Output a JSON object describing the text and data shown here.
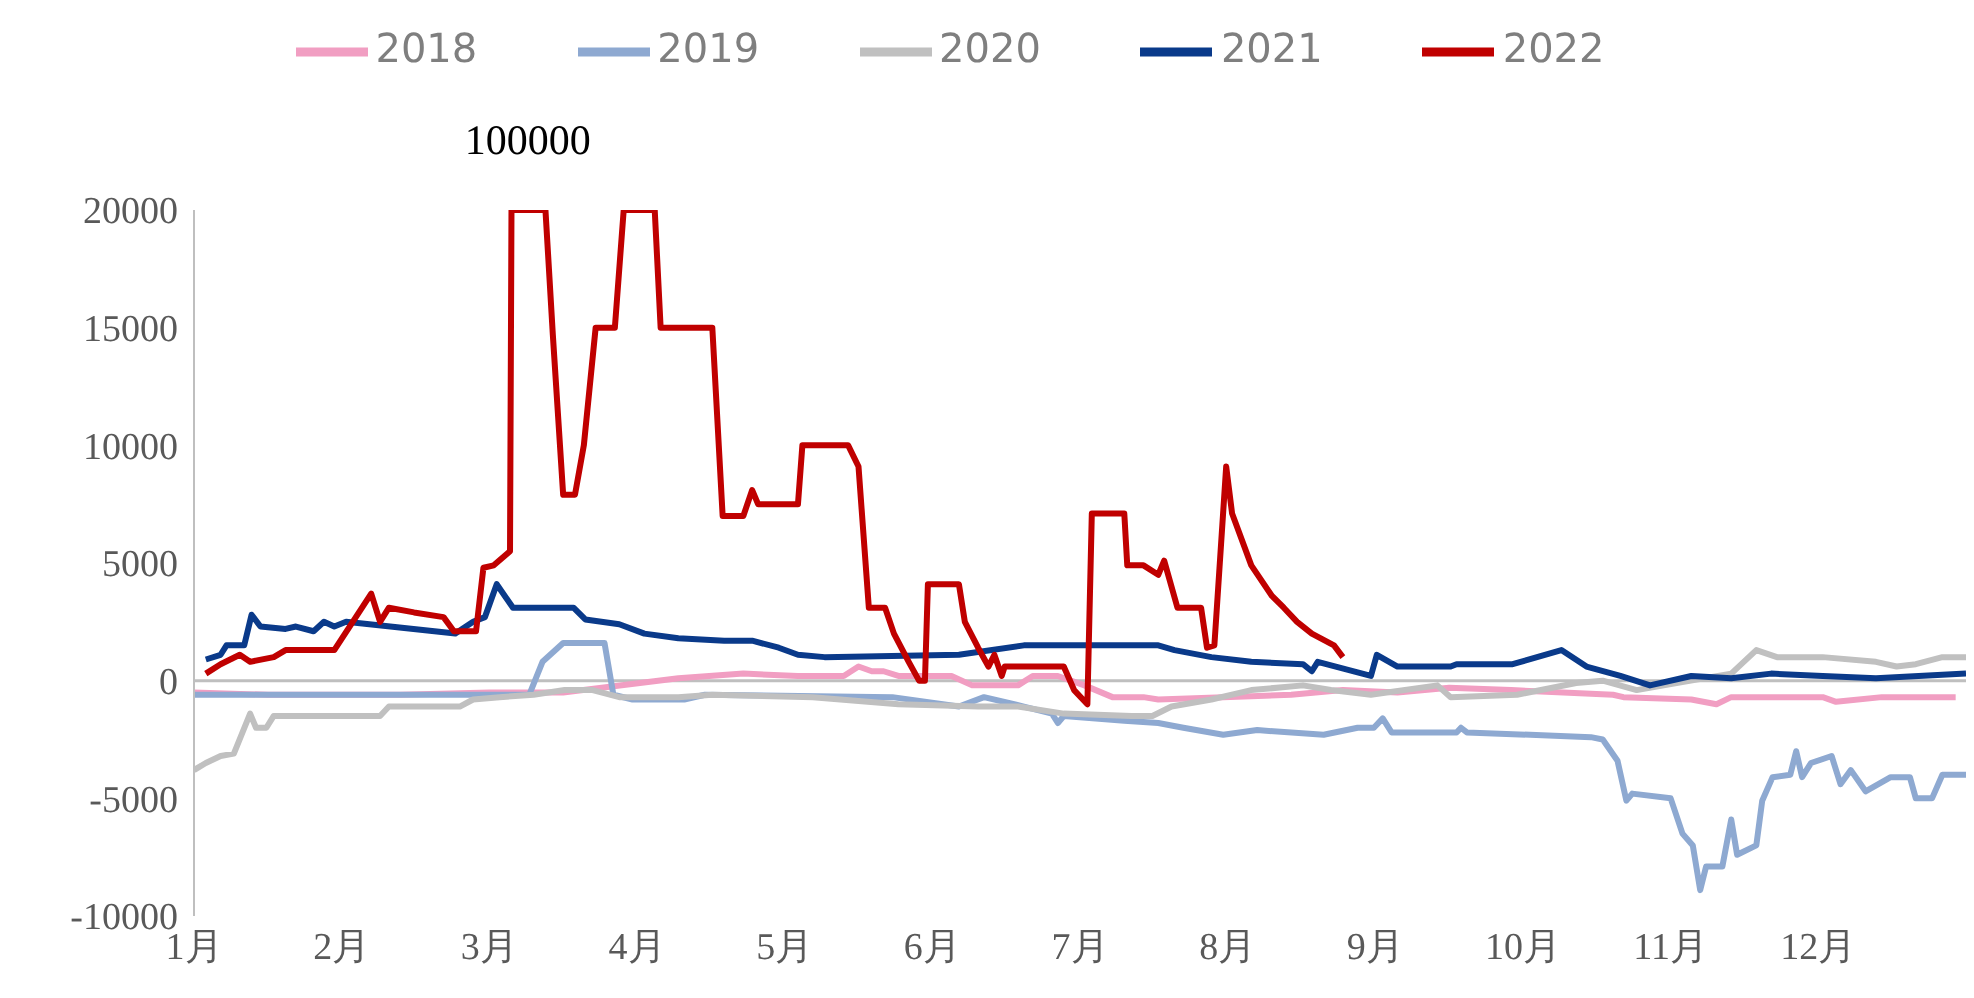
{
  "chart_data": {
    "type": "line",
    "legend": "top",
    "marker": "none",
    "line_style": "solid",
    "grid": false,
    "xlim": [
      1,
      13
    ],
    "xticks": [
      {
        "value": 1,
        "label": "1月"
      },
      {
        "value": 2,
        "label": "2月"
      },
      {
        "value": 3,
        "label": "3月"
      },
      {
        "value": 4,
        "label": "4月"
      },
      {
        "value": 5,
        "label": "5月"
      },
      {
        "value": 6,
        "label": "6月"
      },
      {
        "value": 7,
        "label": "7月"
      },
      {
        "value": 8,
        "label": "8月"
      },
      {
        "value": 9,
        "label": "9月"
      },
      {
        "value": 10,
        "label": "10月"
      },
      {
        "value": 11,
        "label": "11月"
      },
      {
        "value": 12,
        "label": "12月"
      }
    ],
    "ylim": [
      -10000,
      20000
    ],
    "yticks": [
      -10000,
      -5000,
      0,
      5000,
      10000,
      15000,
      20000
    ],
    "annotations": [
      {
        "text": "100000",
        "x": 3.26,
        "y": 20000
      }
    ],
    "ref_lines": [
      {
        "axis": "y",
        "value": 0,
        "color": "#bfbfbf",
        "line_style": "solid"
      }
    ],
    "series": [
      {
        "name": "2018",
        "color": "#f19ec2",
        "x": [
          1.0,
          1.5,
          2.4,
          3.0,
          3.5,
          4.28,
          4.72,
          5.09,
          5.4,
          5.5,
          5.59,
          5.67,
          5.77,
          6.13,
          6.27,
          6.58,
          6.68,
          6.85,
          7.03,
          7.22,
          7.43,
          7.53,
          7.97,
          8.43,
          8.78,
          9.15,
          9.5,
          9.92,
          10.61,
          10.68,
          11.14,
          11.31,
          11.41,
          12.03,
          12.12,
          12.43,
          12.93
        ],
        "values": [
          -500,
          -600,
          -600,
          -500,
          -500,
          100,
          300,
          200,
          200,
          600,
          400,
          400,
          200,
          200,
          -200,
          -200,
          200,
          200,
          -200,
          -700,
          -700,
          -800,
          -700,
          -600,
          -400,
          -500,
          -300,
          -400,
          -600,
          -700,
          -800,
          -1000,
          -700,
          -700,
          -900,
          -700,
          -700
        ]
      },
      {
        "name": "2019",
        "color": "#8ea9d1",
        "x": [
          1.0,
          3.27,
          3.36,
          3.5,
          3.78,
          3.84,
          3.97,
          4.32,
          4.46,
          5.73,
          6.18,
          6.35,
          6.62,
          6.81,
          6.85,
          6.89,
          7.3,
          7.53,
          7.7,
          7.97,
          8.2,
          8.65,
          8.88,
          8.99,
          9.05,
          9.11,
          9.55,
          9.58,
          9.62,
          10.46,
          10.54,
          10.64,
          10.7,
          10.74,
          11.0,
          11.08,
          11.15,
          11.2,
          11.24,
          11.35,
          11.41,
          11.45,
          11.58,
          11.62,
          11.69,
          11.81,
          11.85,
          11.89,
          11.95,
          12.09,
          12.15,
          12.22,
          12.32,
          12.49,
          12.62,
          12.66,
          12.77,
          12.84,
          13.0
        ],
        "values": [
          -600,
          -600,
          800,
          1600,
          1600,
          -600,
          -800,
          -800,
          -600,
          -700,
          -1100,
          -700,
          -1100,
          -1400,
          -1800,
          -1500,
          -1700,
          -1800,
          -2000,
          -2300,
          -2100,
          -2300,
          -2000,
          -2000,
          -1600,
          -2200,
          -2200,
          -2000,
          -2200,
          -2400,
          -2500,
          -3400,
          -5100,
          -4800,
          -5000,
          -6500,
          -7000,
          -8900,
          -7900,
          -7900,
          -5900,
          -7400,
          -7000,
          -5100,
          -4100,
          -4000,
          -3000,
          -4100,
          -3500,
          -3200,
          -4400,
          -3800,
          -4700,
          -4100,
          -4100,
          -5000,
          -5000,
          -4000,
          -4000
        ]
      },
      {
        "name": "2020",
        "color": "#c0c0c0",
        "x": [
          1.0,
          1.08,
          1.18,
          1.27,
          1.38,
          1.42,
          1.49,
          1.54,
          2.26,
          2.32,
          2.8,
          2.89,
          3.07,
          3.3,
          3.51,
          3.7,
          3.88,
          4.28,
          4.51,
          5.19,
          5.77,
          6.31,
          6.58,
          6.89,
          7.35,
          7.49,
          7.62,
          7.89,
          8.16,
          8.51,
          8.7,
          8.97,
          9.42,
          9.51,
          9.96,
          10.36,
          10.54,
          10.77,
          11.04,
          11.41,
          11.58,
          11.72,
          12.03,
          12.39,
          12.53,
          12.66,
          12.84,
          13.0
        ],
        "values": [
          -3800,
          -3500,
          -3200,
          -3100,
          -1400,
          -2000,
          -2000,
          -1500,
          -1500,
          -1100,
          -1100,
          -800,
          -700,
          -600,
          -400,
          -400,
          -700,
          -700,
          -600,
          -700,
          -1000,
          -1100,
          -1100,
          -1400,
          -1500,
          -1500,
          -1100,
          -800,
          -400,
          -200,
          -400,
          -600,
          -200,
          -700,
          -600,
          -100,
          0,
          -400,
          -100,
          300,
          1300,
          1000,
          1000,
          800,
          600,
          700,
          1000,
          1000
        ]
      },
      {
        "name": "2021",
        "color": "#0a3a8a",
        "x": [
          1.08,
          1.18,
          1.22,
          1.34,
          1.39,
          1.45,
          1.62,
          1.69,
          1.81,
          1.88,
          1.95,
          2.03,
          2.77,
          2.89,
          2.97,
          3.05,
          3.16,
          3.57,
          3.65,
          3.88,
          4.05,
          4.28,
          4.59,
          4.78,
          4.96,
          5.09,
          5.27,
          6.18,
          6.62,
          7.53,
          7.64,
          7.89,
          8.16,
          8.51,
          8.57,
          8.61,
          8.97,
          9.01,
          9.15,
          9.51,
          9.55,
          9.93,
          10.26,
          10.43,
          10.66,
          10.86,
          11.14,
          11.41,
          11.68,
          12.03,
          12.39,
          13.0
        ],
        "values": [
          900,
          1100,
          1500,
          1500,
          2800,
          2300,
          2200,
          2300,
          2100,
          2500,
          2300,
          2500,
          2000,
          2500,
          2700,
          4100,
          3100,
          3100,
          2600,
          2400,
          2000,
          1800,
          1700,
          1700,
          1400,
          1100,
          1000,
          1100,
          1500,
          1500,
          1300,
          1000,
          800,
          700,
          400,
          800,
          200,
          1100,
          600,
          600,
          700,
          700,
          1300,
          600,
          200,
          -200,
          200,
          100,
          300,
          200,
          100,
          300
        ]
      },
      {
        "name": "2022",
        "color": "#c00000",
        "x": [
          1.08,
          1.18,
          1.31,
          1.38,
          1.54,
          1.62,
          1.95,
          2.2,
          2.26,
          2.32,
          2.49,
          2.69,
          2.76,
          2.91,
          2.96,
          3.03,
          3.14,
          3.15,
          3.38,
          3.43,
          3.5,
          3.58,
          3.64,
          3.72,
          3.85,
          3.91,
          4.12,
          4.16,
          4.51,
          4.58,
          4.72,
          4.78,
          4.82,
          5.09,
          5.12,
          5.43,
          5.5,
          5.57,
          5.68,
          5.74,
          5.84,
          5.91,
          5.95,
          5.97,
          6.18,
          6.22,
          6.31,
          6.38,
          6.42,
          6.47,
          6.49,
          6.89,
          6.96,
          7.05,
          7.08,
          7.3,
          7.32,
          7.43,
          7.53,
          7.57,
          7.66,
          7.82,
          7.86,
          7.91,
          7.99,
          8.03,
          8.16,
          8.3,
          8.38,
          8.47,
          8.57,
          8.72,
          8.78
        ],
        "values": [
          300,
          700,
          1100,
          800,
          1000,
          1300,
          1300,
          3700,
          2500,
          3100,
          2900,
          2700,
          2100,
          2100,
          4800,
          4900,
          5500,
          20000,
          20000,
          14700,
          7900,
          7900,
          10000,
          15000,
          15000,
          20000,
          20000,
          15000,
          15000,
          7000,
          7000,
          8100,
          7500,
          7500,
          10000,
          10000,
          9100,
          3100,
          3100,
          2000,
          800,
          0,
          0,
          4100,
          4100,
          2500,
          1400,
          600,
          1100,
          200,
          600,
          600,
          -400,
          -1000,
          7100,
          7100,
          4900,
          4900,
          4500,
          5100,
          3100,
          3100,
          1400,
          1500,
          9100,
          7100,
          4900,
          3600,
          3100,
          2500,
          2000,
          1500,
          1000
        ]
      }
    ]
  }
}
